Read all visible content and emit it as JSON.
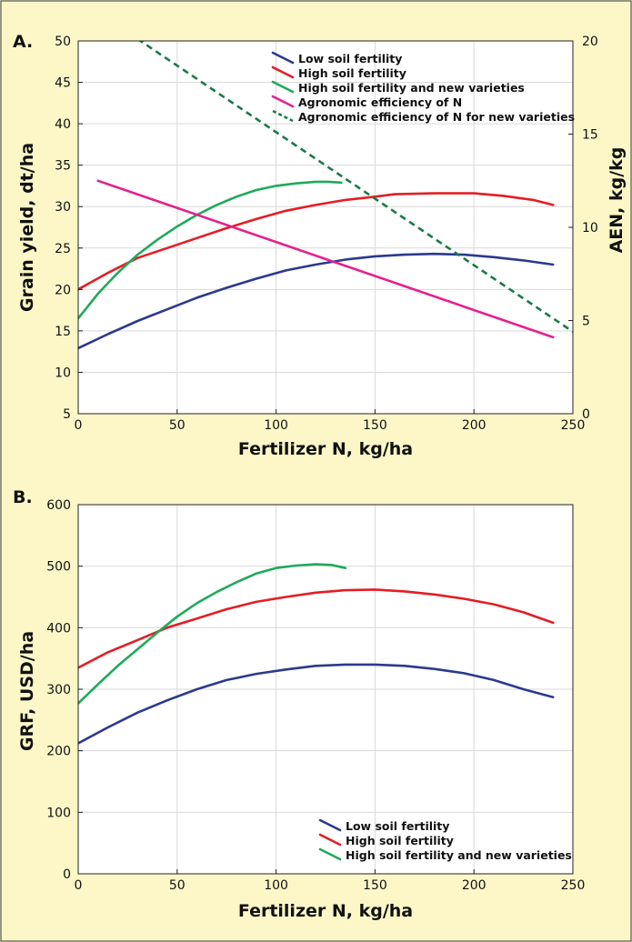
{
  "colors": {
    "background": "#fdf7c8",
    "plot_background": "#ffffff",
    "grid": "#d9d9d9",
    "low": "#2b3990",
    "high": "#e31e24",
    "new": "#1faa59",
    "aen": "#e5208f",
    "aen_new": "#1a7a4a"
  },
  "chart_data": [
    {
      "panel": "A.",
      "type": "line",
      "xlabel": "Fertilizer N, kg/ha",
      "ylabel": "Grain yield, dt/ha",
      "y2label": "AEN, kg/kg",
      "xlim": [
        0,
        250
      ],
      "ylim": [
        5,
        50
      ],
      "y2lim": [
        0,
        20
      ],
      "x_ticks": [
        "0",
        "50",
        "100",
        "150",
        "200",
        "250"
      ],
      "y_ticks": [
        "5",
        "10",
        "15",
        "20",
        "25",
        "30",
        "35",
        "40",
        "45",
        "50"
      ],
      "y2_ticks": [
        "0",
        "5",
        "10",
        "15",
        "20"
      ],
      "grid": true,
      "legend_position": "top-center",
      "series": [
        {
          "name": "Low soil fertility",
          "axis": "left",
          "color_key": "low",
          "style": "solid",
          "x": [
            0,
            15,
            30,
            45,
            60,
            75,
            90,
            105,
            120,
            135,
            150,
            165,
            180,
            195,
            210,
            225,
            240
          ],
          "y": [
            12.9,
            14.6,
            16.2,
            17.6,
            19.0,
            20.2,
            21.3,
            22.3,
            23.0,
            23.6,
            24.0,
            24.2,
            24.3,
            24.2,
            23.9,
            23.5,
            23.0
          ]
        },
        {
          "name": "High soil fertility",
          "axis": "left",
          "color_key": "high",
          "style": "solid",
          "x": [
            0,
            15,
            30,
            45,
            60,
            75,
            90,
            105,
            120,
            135,
            150,
            160,
            180,
            200,
            215,
            230,
            240
          ],
          "y": [
            20.0,
            22.0,
            23.8,
            25.0,
            26.2,
            27.4,
            28.5,
            29.5,
            30.2,
            30.8,
            31.2,
            31.5,
            31.6,
            31.6,
            31.3,
            30.8,
            30.2
          ]
        },
        {
          "name": "High soil fertility and new varieties",
          "axis": "left",
          "color_key": "new",
          "style": "solid",
          "x": [
            0,
            10,
            20,
            30,
            40,
            50,
            60,
            70,
            80,
            90,
            100,
            110,
            120,
            126,
            133
          ],
          "y": [
            16.5,
            19.5,
            22.0,
            24.2,
            26.0,
            27.6,
            29.0,
            30.2,
            31.2,
            32.0,
            32.5,
            32.8,
            33.0,
            33.0,
            32.9
          ]
        },
        {
          "name": "Agronomic efficiency of N",
          "axis": "right",
          "color_key": "aen",
          "style": "solid",
          "x": [
            10,
            240
          ],
          "y": [
            12.5,
            4.1
          ]
        },
        {
          "name": "Agronomic efficiency of N for new varieties",
          "axis": "right",
          "color_key": "aen_new",
          "style": "dashed",
          "x": [
            30,
            250
          ],
          "y": [
            20.1,
            4.4
          ]
        }
      ]
    },
    {
      "panel": "B.",
      "type": "line",
      "xlabel": "Fertilizer N, kg/ha",
      "ylabel": "GRF, USD/ha",
      "xlim": [
        0,
        250
      ],
      "ylim": [
        0,
        600
      ],
      "x_ticks": [
        "0",
        "50",
        "100",
        "150",
        "200",
        "250"
      ],
      "y_ticks": [
        "0",
        "100",
        "200",
        "300",
        "400",
        "500",
        "600"
      ],
      "grid": true,
      "legend_position": "bottom-right",
      "series": [
        {
          "name": "Low soil fertility",
          "color_key": "low",
          "style": "solid",
          "x": [
            0,
            15,
            30,
            45,
            60,
            75,
            90,
            105,
            120,
            135,
            150,
            165,
            180,
            195,
            210,
            225,
            240
          ],
          "y": [
            212,
            238,
            262,
            282,
            300,
            315,
            325,
            332,
            338,
            340,
            340,
            338,
            333,
            326,
            315,
            300,
            287
          ]
        },
        {
          "name": "High soil fertility",
          "color_key": "high",
          "style": "solid",
          "x": [
            0,
            15,
            30,
            45,
            60,
            75,
            90,
            105,
            120,
            135,
            150,
            165,
            180,
            195,
            210,
            225,
            240
          ],
          "y": [
            335,
            360,
            380,
            400,
            415,
            430,
            442,
            450,
            457,
            461,
            462,
            459,
            454,
            447,
            438,
            425,
            408
          ]
        },
        {
          "name": "High soil fertility and new varieties",
          "color_key": "new",
          "style": "solid",
          "x": [
            0,
            10,
            20,
            30,
            40,
            50,
            60,
            70,
            80,
            90,
            100,
            110,
            120,
            128,
            135
          ],
          "y": [
            277,
            308,
            338,
            365,
            392,
            418,
            440,
            458,
            474,
            488,
            497,
            501,
            503,
            502,
            497
          ]
        }
      ]
    }
  ]
}
